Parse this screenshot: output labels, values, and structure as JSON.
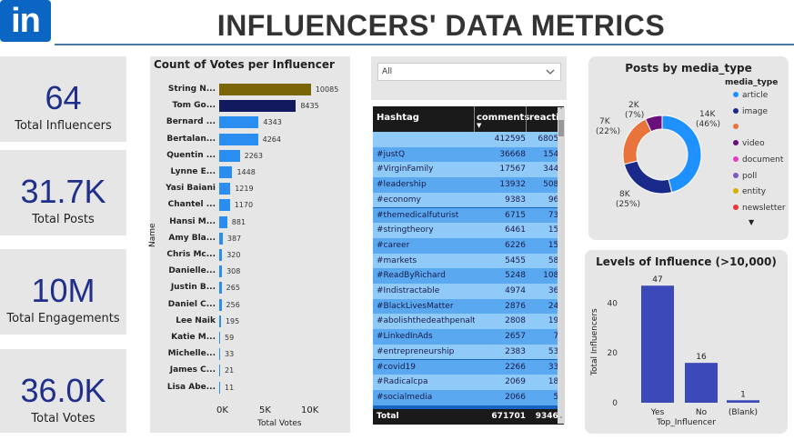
{
  "header": {
    "logo": "in",
    "title": "INFLUENCERS' DATA METRICS"
  },
  "kpis": [
    {
      "value": "64",
      "label": "Total Influencers"
    },
    {
      "value": "31.7K",
      "label": "Total Posts"
    },
    {
      "value": "10M",
      "label": "Total Engagements"
    },
    {
      "value": "36.0K",
      "label": "Total Votes"
    }
  ],
  "filter": {
    "selected": "All"
  },
  "votes_chart": {
    "title": "Count of Votes per Influencer",
    "xlabel": "Total Votes",
    "ylabel": "Name",
    "ticks": [
      "0K",
      "5K",
      "10K"
    ],
    "bars": [
      {
        "name": "String N...",
        "value": 10085,
        "label": "10085",
        "color": "#7a6608"
      },
      {
        "name": "Tom Go...",
        "value": 8435,
        "label": "8435",
        "color": "#13195e"
      },
      {
        "name": "Bernard ...",
        "value": 4343,
        "label": "4343",
        "color": "#2a8ef0"
      },
      {
        "name": "Bertalan...",
        "value": 4264,
        "label": "4264",
        "color": "#2a8ef0"
      },
      {
        "name": "Quentin ...",
        "value": 2263,
        "label": "2263",
        "color": "#2a8ef0"
      },
      {
        "name": "Lynne E...",
        "value": 1448,
        "label": "1448",
        "color": "#2a8ef0"
      },
      {
        "name": "Yasi Baiani",
        "value": 1219,
        "label": "1219",
        "color": "#2a8ef0"
      },
      {
        "name": "Chantel ...",
        "value": 1170,
        "label": "1170",
        "color": "#2a8ef0"
      },
      {
        "name": "Hansi M...",
        "value": 881,
        "label": "881",
        "color": "#2a8ef0"
      },
      {
        "name": "Amy Bla...",
        "value": 387,
        "label": "387",
        "color": "#2a8ef0"
      },
      {
        "name": "Chris Mc...",
        "value": 320,
        "label": "320",
        "color": "#2a8ef0"
      },
      {
        "name": "Danielle...",
        "value": 308,
        "label": "308",
        "color": "#2a8ef0"
      },
      {
        "name": "Justin B...",
        "value": 265,
        "label": "265",
        "color": "#2a8ef0"
      },
      {
        "name": "Daniel C...",
        "value": 256,
        "label": "256",
        "color": "#2a8ef0"
      },
      {
        "name": "Lee Naik",
        "value": 195,
        "label": "195",
        "color": "#2a8ef0"
      },
      {
        "name": "Katie M...",
        "value": 59,
        "label": "59",
        "color": "#2a8ef0"
      },
      {
        "name": "Michelle...",
        "value": 33,
        "label": "33",
        "color": "#2a8ef0"
      },
      {
        "name": "James C...",
        "value": 21,
        "label": "21",
        "color": "#2a8ef0"
      },
      {
        "name": "Lisa Abe...",
        "value": 11,
        "label": "11",
        "color": "#2a8ef0"
      }
    ]
  },
  "hashtag_table": {
    "headers": [
      "Hashtag",
      "comments",
      "reactio"
    ],
    "rows": [
      [
        "",
        "412595",
        "68050"
      ],
      [
        "#justQ",
        "36668",
        "1545"
      ],
      [
        "#VirginFamily",
        "17567",
        "3440"
      ],
      [
        "#leadership",
        "13932",
        "5084"
      ],
      [
        "#economy",
        "9383",
        "969"
      ],
      [
        "#themedicalfuturist",
        "6715",
        "738"
      ],
      [
        "#stringtheory",
        "6461",
        "157"
      ],
      [
        "#career",
        "6226",
        "151"
      ],
      [
        "#markets",
        "5455",
        "583"
      ],
      [
        "#ReadByRichard",
        "5248",
        "1089"
      ],
      [
        "#Indistractable",
        "4974",
        "368"
      ],
      [
        "#BlackLivesMatter",
        "2876",
        "242"
      ],
      [
        "#abolishthedeathpenalty",
        "2808",
        "193"
      ],
      [
        "#LinkedInAds",
        "2657",
        "79"
      ],
      [
        "#entrepreneurship",
        "2383",
        "535"
      ],
      [
        "#covid19",
        "2266",
        "330"
      ],
      [
        "#Radicalcpa",
        "2069",
        "185"
      ],
      [
        "#socialmedia",
        "2066",
        "53"
      ]
    ],
    "total": [
      "Total",
      "671701",
      "93461"
    ]
  },
  "media_chart": {
    "title": "Posts by media_type",
    "legend_title": "media_type",
    "slices": [
      {
        "name": "article",
        "value": 14000,
        "pct": 46,
        "label": "14K (46%)",
        "color": "#1e90ff"
      },
      {
        "name": "image",
        "value": 8000,
        "pct": 25,
        "label": "8K (25%)",
        "color": "#1a2a8a"
      },
      {
        "name": "",
        "value": 7000,
        "pct": 22,
        "label": "7K (22%)",
        "color": "#e8743b"
      },
      {
        "name": "video",
        "value": 2000,
        "pct": 7,
        "label": "2K (7%)",
        "color": "#6b0f7a"
      }
    ],
    "legend": [
      {
        "name": "article",
        "color": "#1e90ff"
      },
      {
        "name": "image",
        "color": "#1a2a8a"
      },
      {
        "name": "",
        "color": "#e8743b"
      },
      {
        "name": "video",
        "color": "#6b0f7a"
      },
      {
        "name": "document",
        "color": "#e040c0"
      },
      {
        "name": "poll",
        "color": "#7e57c2"
      },
      {
        "name": "entity",
        "color": "#d4b000"
      },
      {
        "name": "newsletter",
        "color": "#e53935"
      }
    ]
  },
  "influence_chart": {
    "title": "Levels of Influence (>10,000)",
    "xlabel": "Top_Influencer",
    "ylabel": "Total Influencers",
    "ticks": [
      "0",
      "20",
      "40"
    ],
    "ylim": [
      0,
      50
    ],
    "bars": [
      {
        "category": "Yes",
        "value": 47,
        "label": "47"
      },
      {
        "category": "No",
        "value": 16,
        "label": "16"
      },
      {
        "category": "(Blank)",
        "value": 1,
        "label": "1"
      }
    ],
    "color": "#3b4ab8"
  }
}
